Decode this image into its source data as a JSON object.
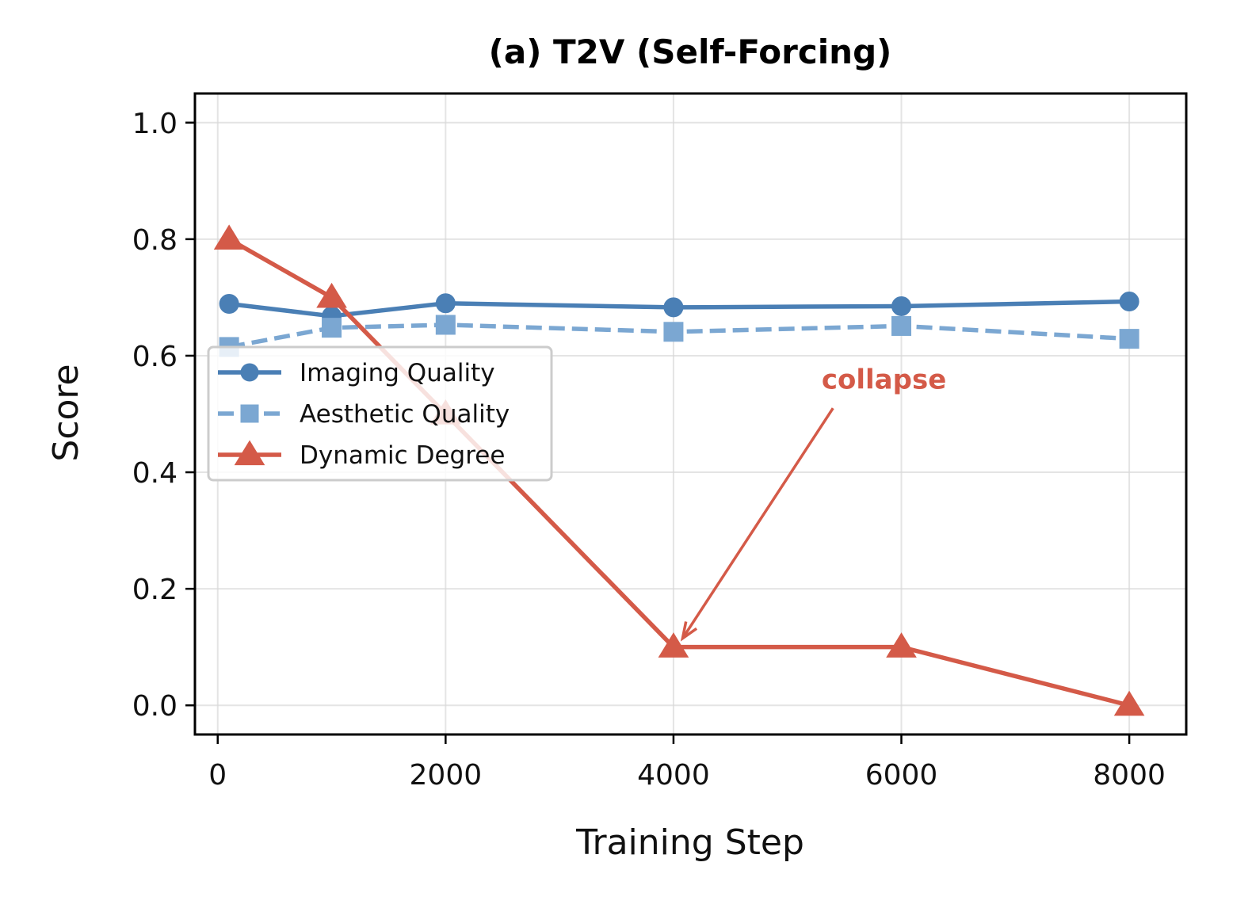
{
  "chart_data": {
    "type": "line",
    "title": "(a) T2V (Self-Forcing)",
    "xlabel": "Training Step",
    "ylabel": "Score",
    "xlim": [
      -200,
      8500
    ],
    "ylim": [
      -0.05,
      1.05
    ],
    "xticks": [
      0,
      2000,
      4000,
      6000,
      8000
    ],
    "xtick_labels": [
      "0",
      "2000",
      "4000",
      "6000",
      "8000"
    ],
    "yticks": [
      0.0,
      0.2,
      0.4,
      0.6,
      0.8,
      1.0
    ],
    "ytick_labels": [
      "0.0",
      "0.2",
      "0.4",
      "0.6",
      "0.8",
      "1.0"
    ],
    "grid": true,
    "legend_position": "center-left",
    "series": [
      {
        "name": "Imaging Quality",
        "x": [
          100,
          1000,
          2000,
          4000,
          6000,
          8000
        ],
        "values": [
          0.689,
          0.668,
          0.69,
          0.683,
          0.685,
          0.693
        ],
        "color": "#4a7fb5",
        "marker": "circle",
        "linestyle": "solid"
      },
      {
        "name": "Aesthetic Quality",
        "x": [
          100,
          1000,
          2000,
          4000,
          6000,
          8000
        ],
        "values": [
          0.615,
          0.648,
          0.653,
          0.641,
          0.651,
          0.629
        ],
        "color": "#7ba7d2",
        "marker": "square",
        "linestyle": "dashed"
      },
      {
        "name": "Dynamic Degree",
        "x": [
          100,
          1000,
          2000,
          4000,
          6000,
          8000
        ],
        "values": [
          0.8,
          0.7,
          0.5,
          0.1,
          0.1,
          0.0
        ],
        "color": "#d45a48",
        "marker": "triangle",
        "linestyle": "solid"
      }
    ],
    "annotations": [
      {
        "text": "collapse",
        "text_x": 5300,
        "text_y": 0.56,
        "arrow_from_x": 5400,
        "arrow_from_y": 0.51,
        "arrow_to_x": 4080,
        "arrow_to_y": 0.115,
        "color": "#d45a48"
      }
    ]
  }
}
